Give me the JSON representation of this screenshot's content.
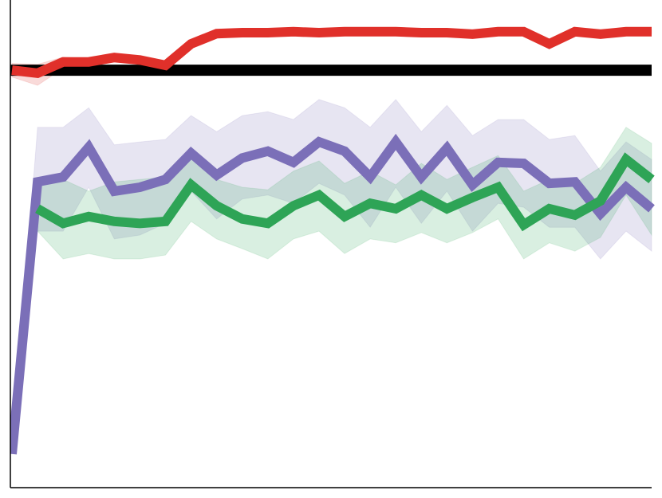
{
  "chart_data": {
    "type": "line",
    "x": [
      0,
      1,
      2,
      3,
      4,
      5,
      6,
      7,
      8,
      9,
      10,
      11,
      12,
      13,
      14,
      15,
      16,
      17,
      18,
      19,
      20,
      21,
      22,
      23,
      24,
      25
    ],
    "xlim": [
      0,
      25
    ],
    "ylim": [
      0,
      100
    ],
    "hline": {
      "value": 85.6,
      "color": "#000000"
    },
    "series": [
      {
        "color": "#e0302a",
        "values": [
          85.6,
          85.0,
          87.3,
          87.3,
          88.2,
          87.7,
          86.6,
          91.0,
          93.1,
          93.3,
          93.3,
          93.5,
          93.3,
          93.5,
          93.5,
          93.5,
          93.3,
          93.3,
          93.0,
          93.5,
          93.5,
          91.0,
          93.5,
          93.0,
          93.5,
          93.5
        ],
        "upper": [
          87.0,
          86.8,
          88.3,
          88.0,
          88.8,
          88.5,
          87.6,
          91.5,
          93.5,
          93.7,
          93.7,
          93.9,
          93.7,
          93.9,
          93.9,
          93.9,
          93.7,
          93.7,
          93.4,
          93.9,
          93.9,
          91.5,
          93.9,
          93.4,
          93.9,
          93.9
        ],
        "lower": [
          84.2,
          82.5,
          86.0,
          86.5,
          87.5,
          86.8,
          85.5,
          90.4,
          92.6,
          92.9,
          92.9,
          93.1,
          92.9,
          93.1,
          93.1,
          93.1,
          92.9,
          92.9,
          92.6,
          93.1,
          93.1,
          90.4,
          93.1,
          92.6,
          93.1,
          93.1
        ]
      },
      {
        "color": "#7b6fb8",
        "values": [
          6.9,
          62.7,
          63.7,
          69.8,
          60.8,
          61.6,
          63.2,
          68.6,
          64.1,
          67.6,
          69.0,
          66.7,
          70.9,
          69.0,
          63.7,
          70.9,
          63.7,
          69.6,
          62.1,
          66.7,
          66.5,
          62.4,
          62.7,
          56.2,
          61.6,
          57.2
        ],
        "upper": [
          6.9,
          73.9,
          73.9,
          77.9,
          70.3,
          70.9,
          71.4,
          76.3,
          73.0,
          76.3,
          77.1,
          75.5,
          79.6,
          77.9,
          73.9,
          79.6,
          73.0,
          78.4,
          72.2,
          75.5,
          75.5,
          71.4,
          72.2,
          64.9,
          70.9,
          67.3
        ],
        "lower": [
          6.9,
          52.6,
          52.6,
          61.6,
          51.0,
          51.8,
          54.2,
          60.8,
          55.1,
          59.2,
          60.0,
          58.3,
          62.4,
          60.0,
          53.4,
          61.6,
          54.2,
          60.8,
          52.6,
          58.3,
          57.5,
          53.4,
          53.4,
          46.9,
          52.6,
          48.5
        ]
      },
      {
        "color": "#2ea456",
        "values": [
          null,
          57.2,
          54.2,
          55.6,
          54.6,
          54.2,
          54.6,
          62.1,
          57.8,
          55.1,
          54.2,
          57.8,
          60.0,
          55.6,
          58.3,
          57.2,
          60.0,
          57.2,
          59.5,
          61.6,
          53.9,
          57.2,
          55.9,
          58.8,
          67.3,
          63.2
        ],
        "upper": [
          null,
          62.1,
          63.2,
          60.8,
          62.7,
          63.2,
          63.7,
          69.0,
          63.2,
          61.6,
          61.1,
          64.9,
          67.0,
          62.4,
          64.9,
          62.1,
          66.5,
          63.2,
          65.7,
          68.1,
          60.8,
          63.2,
          62.4,
          65.7,
          73.9,
          70.6
        ],
        "lower": [
          null,
          52.6,
          46.9,
          48.0,
          46.9,
          46.9,
          47.7,
          54.6,
          51.0,
          49.0,
          46.9,
          51.0,
          52.6,
          48.0,
          51.0,
          50.2,
          52.3,
          50.2,
          52.3,
          55.1,
          46.9,
          50.2,
          48.5,
          51.3,
          60.0,
          51.8
        ]
      }
    ]
  }
}
